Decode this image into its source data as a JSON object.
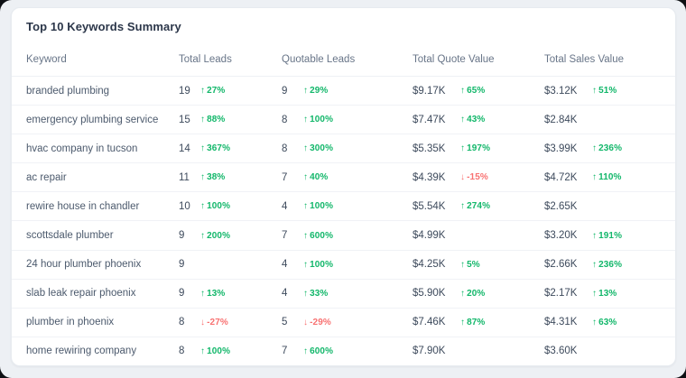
{
  "card": {
    "title": "Top 10 Keywords Summary"
  },
  "colors": {
    "positive": "#12b76a",
    "negative": "#f87171"
  },
  "table": {
    "columns": [
      "Keyword",
      "Total Leads",
      "Quotable Leads",
      "Total Quote Value",
      "Total Sales Value"
    ],
    "rows": [
      {
        "keyword": "branded plumbing",
        "total_leads": {
          "value": "19",
          "delta": "27%",
          "direction": "up"
        },
        "quotable_leads": {
          "value": "9",
          "delta": "29%",
          "direction": "up"
        },
        "total_quote_value": {
          "value": "$9.17K",
          "delta": "65%",
          "direction": "up"
        },
        "total_sales_value": {
          "value": "$3.12K",
          "delta": "51%",
          "direction": "up"
        }
      },
      {
        "keyword": "emergency plumbing service",
        "total_leads": {
          "value": "15",
          "delta": "88%",
          "direction": "up"
        },
        "quotable_leads": {
          "value": "8",
          "delta": "100%",
          "direction": "up"
        },
        "total_quote_value": {
          "value": "$7.47K",
          "delta": "43%",
          "direction": "up"
        },
        "total_sales_value": {
          "value": "$2.84K",
          "delta": null,
          "direction": null
        }
      },
      {
        "keyword": "hvac company in tucson",
        "total_leads": {
          "value": "14",
          "delta": "367%",
          "direction": "up"
        },
        "quotable_leads": {
          "value": "8",
          "delta": "300%",
          "direction": "up"
        },
        "total_quote_value": {
          "value": "$5.35K",
          "delta": "197%",
          "direction": "up"
        },
        "total_sales_value": {
          "value": "$3.99K",
          "delta": "236%",
          "direction": "up"
        }
      },
      {
        "keyword": "ac repair",
        "total_leads": {
          "value": "11",
          "delta": "38%",
          "direction": "up"
        },
        "quotable_leads": {
          "value": "7",
          "delta": "40%",
          "direction": "up"
        },
        "total_quote_value": {
          "value": "$4.39K",
          "delta": "-15%",
          "direction": "down"
        },
        "total_sales_value": {
          "value": "$4.72K",
          "delta": "110%",
          "direction": "up"
        }
      },
      {
        "keyword": "rewire house in chandler",
        "total_leads": {
          "value": "10",
          "delta": "100%",
          "direction": "up"
        },
        "quotable_leads": {
          "value": "4",
          "delta": "100%",
          "direction": "up"
        },
        "total_quote_value": {
          "value": "$5.54K",
          "delta": "274%",
          "direction": "up"
        },
        "total_sales_value": {
          "value": "$2.65K",
          "delta": null,
          "direction": null
        }
      },
      {
        "keyword": "scottsdale plumber",
        "total_leads": {
          "value": "9",
          "delta": "200%",
          "direction": "up"
        },
        "quotable_leads": {
          "value": "7",
          "delta": "600%",
          "direction": "up"
        },
        "total_quote_value": {
          "value": "$4.99K",
          "delta": null,
          "direction": null
        },
        "total_sales_value": {
          "value": "$3.20K",
          "delta": "191%",
          "direction": "up"
        }
      },
      {
        "keyword": "24 hour plumber phoenix",
        "total_leads": {
          "value": "9",
          "delta": null,
          "direction": null
        },
        "quotable_leads": {
          "value": "4",
          "delta": "100%",
          "direction": "up"
        },
        "total_quote_value": {
          "value": "$4.25K",
          "delta": "5%",
          "direction": "up"
        },
        "total_sales_value": {
          "value": "$2.66K",
          "delta": "236%",
          "direction": "up"
        }
      },
      {
        "keyword": "slab leak repair phoenix",
        "total_leads": {
          "value": "9",
          "delta": "13%",
          "direction": "up"
        },
        "quotable_leads": {
          "value": "4",
          "delta": "33%",
          "direction": "up"
        },
        "total_quote_value": {
          "value": "$5.90K",
          "delta": "20%",
          "direction": "up"
        },
        "total_sales_value": {
          "value": "$2.17K",
          "delta": "13%",
          "direction": "up"
        }
      },
      {
        "keyword": "plumber in phoenix",
        "total_leads": {
          "value": "8",
          "delta": "-27%",
          "direction": "down"
        },
        "quotable_leads": {
          "value": "5",
          "delta": "-29%",
          "direction": "down"
        },
        "total_quote_value": {
          "value": "$7.46K",
          "delta": "87%",
          "direction": "up"
        },
        "total_sales_value": {
          "value": "$4.31K",
          "delta": "63%",
          "direction": "up"
        }
      },
      {
        "keyword": "home rewiring company",
        "total_leads": {
          "value": "8",
          "delta": "100%",
          "direction": "up"
        },
        "quotable_leads": {
          "value": "7",
          "delta": "600%",
          "direction": "up"
        },
        "total_quote_value": {
          "value": "$7.90K",
          "delta": null,
          "direction": null
        },
        "total_sales_value": {
          "value": "$3.60K",
          "delta": null,
          "direction": null
        }
      }
    ]
  }
}
